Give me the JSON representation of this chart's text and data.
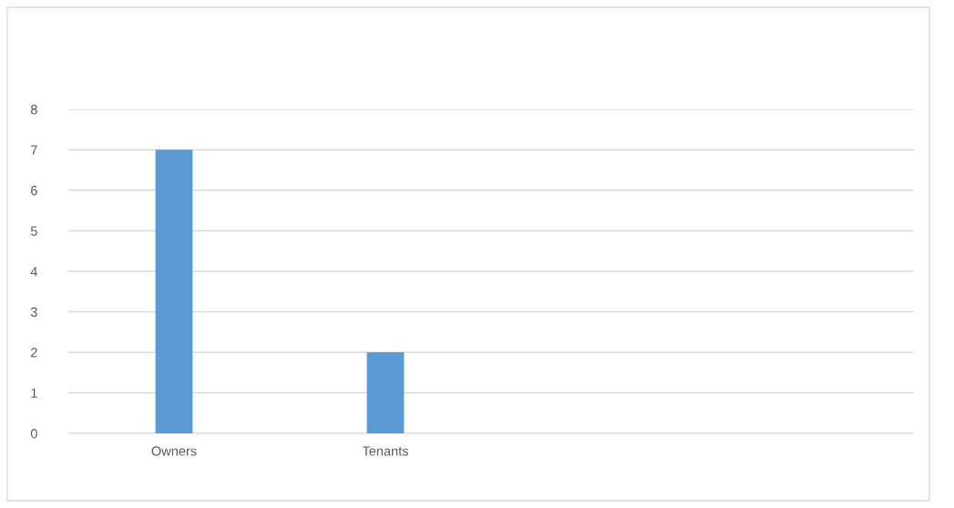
{
  "chart_data": {
    "type": "bar",
    "categories": [
      "Owners",
      "Tenants",
      null,
      null
    ],
    "values": [
      7,
      2,
      null,
      null
    ],
    "color": "#5b9bd5",
    "ylim": [
      0,
      8
    ],
    "yticks": [
      0,
      1,
      2,
      3,
      4,
      5,
      6,
      7,
      8
    ],
    "grid": "y",
    "legend": false
  }
}
